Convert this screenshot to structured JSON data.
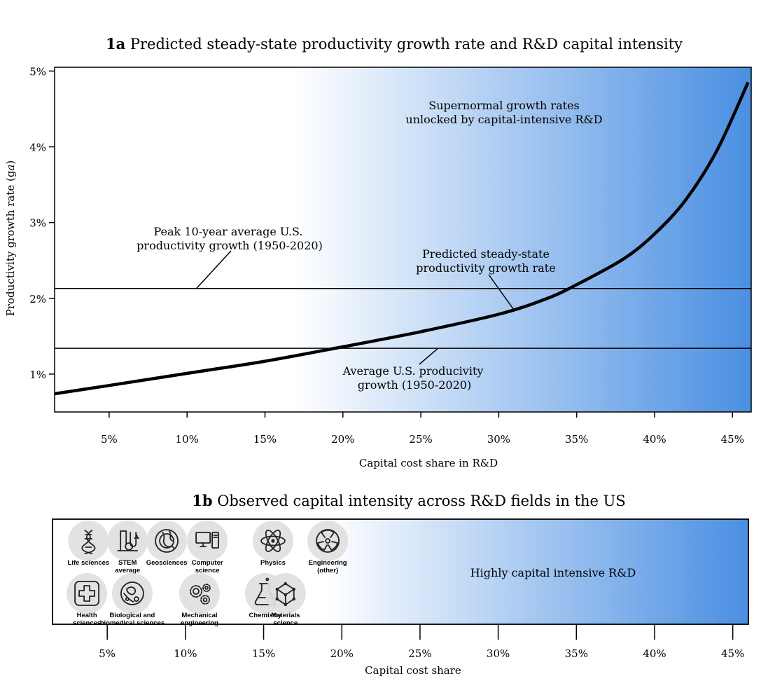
{
  "chart_data": [
    {
      "id": "1a",
      "type": "line",
      "title_prefix": "1a",
      "title": "Predicted steady-state productivity growth rate and R&D capital intensity",
      "xlabel": "Capital cost share in R&D",
      "ylabel": "Productivity growth rate (g",
      "ylabel_sub": "a",
      "ylabel_close": ")",
      "xlim": [
        1.5,
        46.2
      ],
      "ylim": [
        0.5,
        5.05
      ],
      "xticks": [
        5,
        10,
        15,
        20,
        25,
        30,
        35,
        40,
        45
      ],
      "xtick_labels": [
        "5%",
        "10%",
        "15%",
        "20%",
        "25%",
        "30%",
        "35%",
        "40%",
        "45%"
      ],
      "yticks": [
        1,
        2,
        3,
        4,
        5
      ],
      "ytick_labels": [
        "1%",
        "2%",
        "3%",
        "4%",
        "5%"
      ],
      "series": [
        {
          "x": [
            1.5,
            5,
            10,
            15,
            20,
            25,
            30,
            33,
            35,
            38,
            40,
            42,
            44,
            46
          ],
          "y": [
            0.74,
            0.85,
            1.01,
            1.17,
            1.36,
            1.56,
            1.79,
            1.99,
            2.18,
            2.52,
            2.85,
            3.3,
            3.95,
            4.85
          ]
        }
      ],
      "hlines": [
        {
          "y": 2.13
        },
        {
          "y": 1.34
        }
      ],
      "annotations": {
        "peak_line1": "Peak 10-year average U.S.",
        "peak_line2": "productivity growth (1950-2020)",
        "predicted_line1": "Predicted steady-state",
        "predicted_line2": "productivity growth rate",
        "avg_line1": "Average U.S. producivity",
        "avg_line2": "growth (1950-2020)",
        "super_line1": "Supernormal growth rates",
        "super_line2": "unlocked by capital-intensive R&D"
      },
      "gradient": {
        "start_x": 17,
        "start_color": "#ffffff",
        "end_color": "#4a8fe2"
      }
    },
    {
      "id": "1b",
      "type": "scatter",
      "title_prefix": "1b",
      "title": "Observed capital intensity across R&D fields in the US",
      "xlabel": "Capital cost share",
      "xlim": [
        1.5,
        46.0
      ],
      "xticks": [
        5,
        10,
        15,
        20,
        25,
        30,
        35,
        40,
        45
      ],
      "xtick_labels": [
        "5%",
        "10%",
        "15%",
        "20%",
        "25%",
        "30%",
        "35%",
        "40%",
        "45%"
      ],
      "annotation": "Highly capital intensive R&D",
      "gradient": {
        "start_x": 19,
        "start_color": "#ffffff",
        "end_color": "#4a8fe2"
      },
      "fields": [
        {
          "name": "Life sciences",
          "x": 3.8,
          "row": "top",
          "icon": "dna-icon"
        },
        {
          "name": "STEM average",
          "x": 6.3,
          "row": "top",
          "icon": "lab-equipment-icon"
        },
        {
          "name": "Geosciences",
          "x": 8.8,
          "row": "top",
          "icon": "earth-layers-icon"
        },
        {
          "name": "Computer science",
          "x": 11.4,
          "row": "top",
          "icon": "computer-icon"
        },
        {
          "name": "Physics",
          "x": 15.6,
          "row": "top",
          "icon": "atom-icon"
        },
        {
          "name": "Engineering (other)",
          "x": 19.1,
          "row": "top",
          "icon": "radiation-icon"
        },
        {
          "name": "Health sciences",
          "x": 3.7,
          "row": "bottom",
          "icon": "medical-cross-icon"
        },
        {
          "name": "Biological and biomedical sciences",
          "x": 6.6,
          "row": "bottom",
          "icon": "cell-icon"
        },
        {
          "name": "Mechanical engineering",
          "x": 10.9,
          "row": "bottom",
          "icon": "gears-icon"
        },
        {
          "name": "Chemistry",
          "x": 15.1,
          "row": "bottom",
          "icon": "flask-icon"
        },
        {
          "name": "Materials science",
          "x": 16.4,
          "row": "bottom",
          "icon": "crystal-lattice-icon"
        }
      ]
    }
  ]
}
